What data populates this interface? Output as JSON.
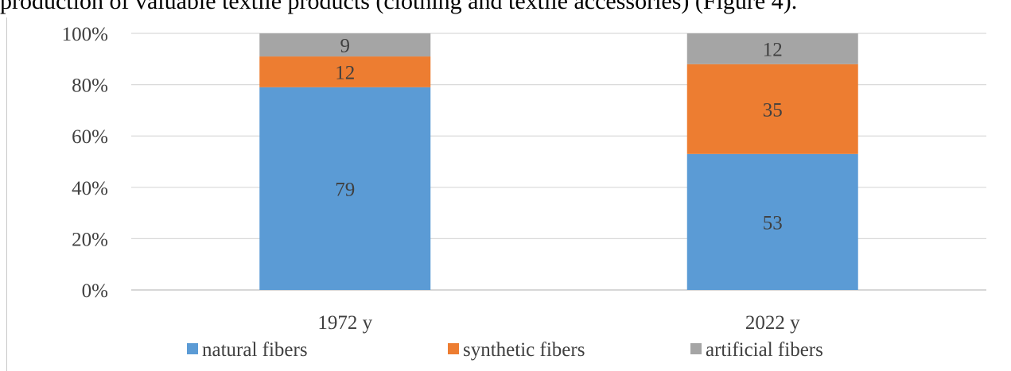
{
  "caption_fragment": "production of valuable textile products (clothing and textile accessories) (Figure 4).",
  "chart_data": {
    "type": "bar",
    "stacked": true,
    "percent_stacked": true,
    "categories": [
      "1972 y",
      "2022 y"
    ],
    "series": [
      {
        "name": "natural fibers",
        "values": [
          79,
          53
        ],
        "color": "#5b9bd5"
      },
      {
        "name": "synthetic fibers",
        "values": [
          12,
          35
        ],
        "color": "#ed7d31"
      },
      {
        "name": "artificial fibers",
        "values": [
          9,
          12
        ],
        "color": "#a5a5a5"
      }
    ],
    "y_ticks": [
      "0%",
      "20%",
      "40%",
      "60%",
      "80%",
      "100%"
    ],
    "ylim": [
      0,
      100
    ],
    "grid": true,
    "legend_position": "bottom"
  }
}
